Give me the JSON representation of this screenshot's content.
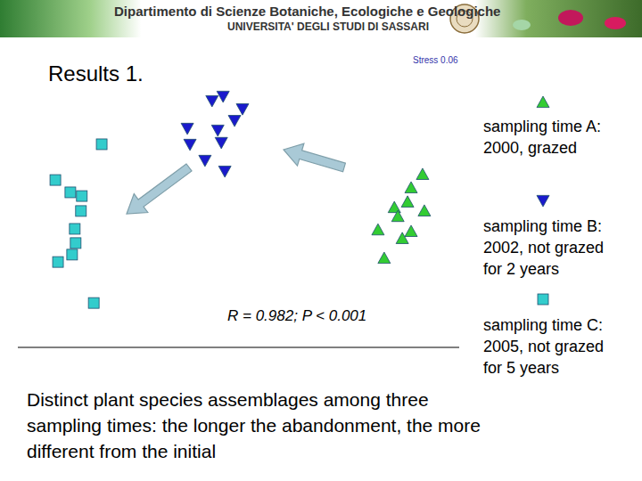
{
  "header": {
    "department": "Dipartimento di Scienze Botaniche, Ecologiche e Geologiche",
    "university": "UNIVERSITA' DEGLI STUDI DI SASSARI"
  },
  "chart_data": {
    "type": "scatter",
    "title": "Results 1.",
    "annotations": [
      "Stress 0.06",
      "R = 0.982; P < 0.001",
      "Distinct plant species assemblages among three sampling times: the longer the abandonment, the more different from the initial"
    ],
    "xlim": [
      0,
      100
    ],
    "ylim": [
      0,
      100
    ],
    "tick_labels": false,
    "grid": false,
    "series": [
      {
        "name": "sampling time A: 2000, grazed",
        "color": "#33cc33",
        "marker": "triangle-up",
        "x": [
          91.7,
          89.1,
          88.3,
          85.3,
          92.1,
          86.1,
          89.1,
          81.6,
          87.1,
          83.0
        ],
        "values": [
          65.8,
          60.7,
          55.3,
          53.2,
          51.9,
          49.8,
          44.1,
          44.7,
          41.4,
          33.9
        ]
      },
      {
        "name": "sampling time B: 2002, not grazed for 2 years",
        "color": "#1a1acc",
        "marker": "triangle-down",
        "x": [
          44.0,
          46.5,
          49.1,
          50.9,
          38.4,
          45.3,
          46.1,
          39.0,
          42.4,
          46.9
        ],
        "values": [
          93.9,
          95.6,
          86.4,
          90.8,
          83.4,
          82.7,
          78.0,
          77.3,
          71.2,
          67.1
        ]
      },
      {
        "name": "sampling time C: 2005, not grazed for 5 years",
        "color": "#33cccc",
        "marker": "square",
        "x": [
          19.0,
          8.5,
          11.9,
          14.5,
          14.3,
          12.9,
          13.1,
          12.3,
          9.1,
          17.2
        ],
        "values": [
          77.3,
          63.7,
          59.0,
          57.6,
          51.9,
          45.1,
          39.7,
          35.3,
          32.5,
          16.9
        ]
      }
    ]
  }
}
